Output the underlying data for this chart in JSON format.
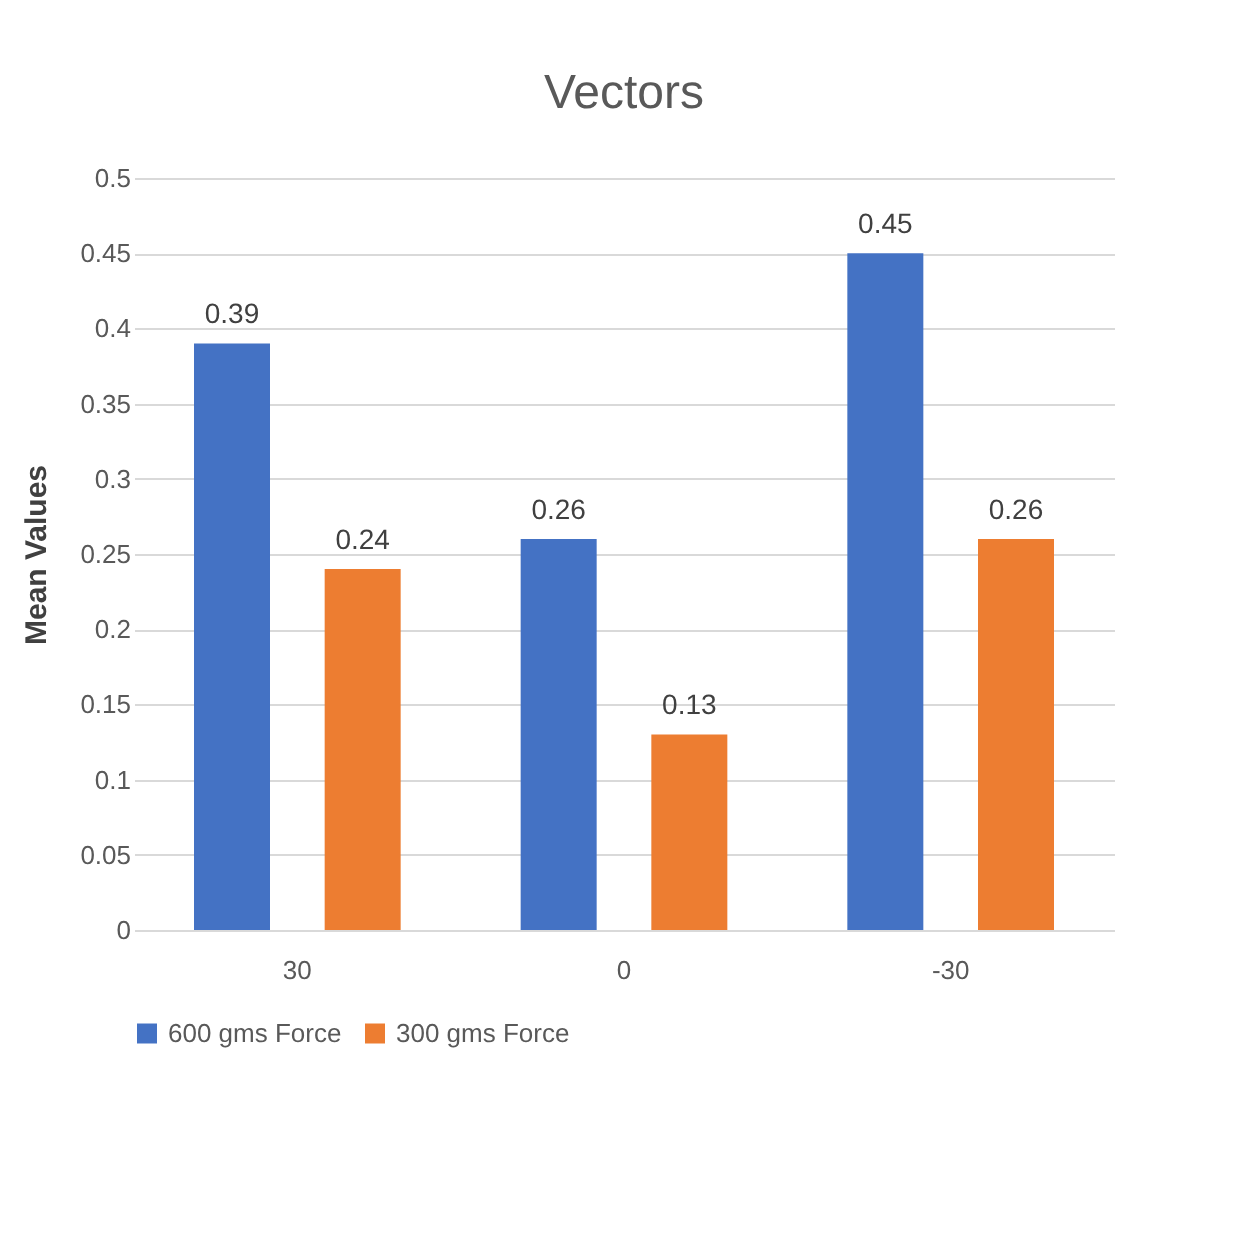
{
  "chart_data": {
    "type": "bar",
    "title": "Vectors",
    "ylabel": "Mean Values",
    "categories": [
      "30",
      "0",
      "-30"
    ],
    "series": [
      {
        "name": "600 gms Force",
        "color": "#4472c4",
        "values": [
          0.39,
          0.26,
          0.45
        ]
      },
      {
        "name": "300 gms Force",
        "color": "#ed7d31",
        "values": [
          0.24,
          0.13,
          0.26
        ]
      }
    ],
    "ylim": [
      0,
      0.5
    ],
    "yticks": [
      0,
      0.05,
      0.1,
      0.15,
      0.2,
      0.25,
      0.3,
      0.35,
      0.4,
      0.45,
      0.5
    ],
    "grid": "y",
    "legend": "bottom",
    "data_labels": true
  }
}
